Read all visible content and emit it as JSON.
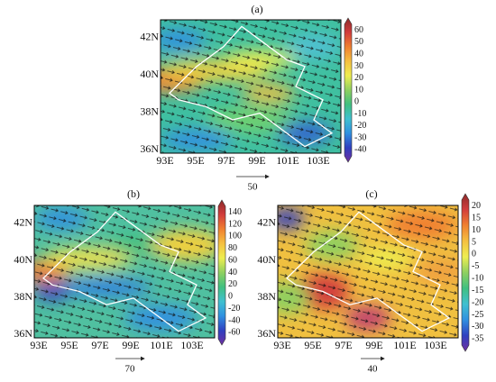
{
  "panels": [
    {
      "label": "(a)",
      "lat_ticks": [
        "42N",
        "40N",
        "38N",
        "36N"
      ],
      "lon_ticks": [
        "93E",
        "95E",
        "97E",
        "99E",
        "101E",
        "103E"
      ],
      "colorbar_ticks": [
        60,
        50,
        40,
        30,
        20,
        10,
        0,
        -10,
        -20,
        -30,
        -40
      ],
      "reference_vector": "50"
    },
    {
      "label": "(b)",
      "lat_ticks": [
        "42N",
        "40N",
        "38N",
        "36N"
      ],
      "lon_ticks": [
        "93E",
        "95E",
        "97E",
        "99E",
        "101E",
        "103E"
      ],
      "colorbar_ticks": [
        140,
        120,
        100,
        80,
        60,
        40,
        20,
        0,
        -20,
        -40,
        -60
      ],
      "reference_vector": "70"
    },
    {
      "label": "(c)",
      "lat_ticks": [
        "42N",
        "40N",
        "38N",
        "36N"
      ],
      "lon_ticks": [
        "93E",
        "95E",
        "97E",
        "99E",
        "101E",
        "103E"
      ],
      "colorbar_ticks": [
        20,
        15,
        10,
        5,
        0,
        -5,
        -10,
        -15,
        -20,
        -25,
        -30,
        -35
      ],
      "reference_vector": "40"
    }
  ]
}
